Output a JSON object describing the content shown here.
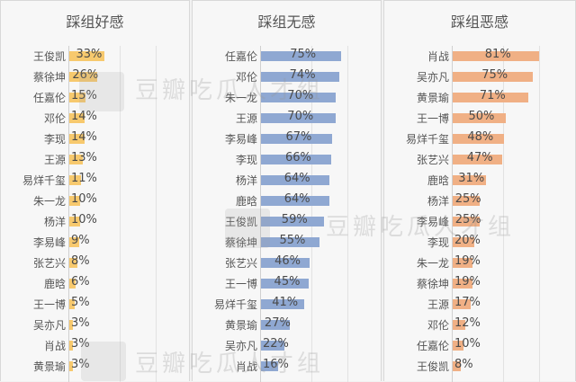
{
  "watermark": {
    "text": "豆瓣吃瓜人才组"
  },
  "colors": {
    "favorable": "#f7c96e",
    "neutral": "#8fa8d2",
    "unfavorable": "#f0b085",
    "background": "#f7f7f7"
  },
  "chart_data": [
    {
      "type": "bar",
      "orientation": "horizontal",
      "title": "踩组好感",
      "color": "#f7c96e",
      "categories": [
        "王俊凯",
        "蔡徐坤",
        "任嘉伦",
        "邓伦",
        "李现",
        "王源",
        "易烊千玺",
        "朱一龙",
        "杨洋",
        "李易峰",
        "张艺兴",
        "鹿晗",
        "王一博",
        "吴亦凡",
        "肖战",
        "黄景瑜"
      ],
      "values": [
        33,
        26,
        15,
        14,
        14,
        13,
        11,
        10,
        10,
        9,
        8,
        6,
        5,
        3,
        3,
        3
      ],
      "labels": [
        "33%",
        "26%",
        "15%",
        "14%",
        "14%",
        "13%",
        "11%",
        "10%",
        "10%",
        "9%",
        "8%",
        "6%",
        "5%",
        "3%",
        "3%",
        "3%"
      ],
      "unit": "%",
      "xlabel": "",
      "ylabel": "",
      "grid": true
    },
    {
      "type": "bar",
      "orientation": "horizontal",
      "title": "踩组无感",
      "color": "#8fa8d2",
      "categories": [
        "任嘉伦",
        "邓伦",
        "朱一龙",
        "王源",
        "李易峰",
        "李现",
        "杨洋",
        "鹿晗",
        "王俊凯",
        "蔡徐坤",
        "张艺兴",
        "王一博",
        "易烊千玺",
        "黄景瑜",
        "吴亦凡",
        "肖战"
      ],
      "values": [
        75,
        74,
        70,
        70,
        67,
        66,
        64,
        64,
        59,
        55,
        46,
        45,
        41,
        27,
        22,
        16
      ],
      "labels": [
        "75%",
        "74%",
        "70%",
        "70%",
        "67%",
        "66%",
        "64%",
        "64%",
        "59%",
        "55%",
        "46%",
        "45%",
        "41%",
        "27%",
        "22%",
        "16%"
      ],
      "unit": "%",
      "xlabel": "",
      "ylabel": "",
      "grid": true
    },
    {
      "type": "bar",
      "orientation": "horizontal",
      "title": "踩组恶感",
      "color": "#f0b085",
      "categories": [
        "肖战",
        "吴亦凡",
        "黄景瑜",
        "王一博",
        "易烊千玺",
        "张艺兴",
        "鹿晗",
        "杨洋",
        "李易峰",
        "李现",
        "朱一龙",
        "蔡徐坤",
        "王源",
        "邓伦",
        "任嘉伦",
        "王俊凯"
      ],
      "values": [
        81,
        75,
        71,
        50,
        48,
        47,
        31,
        25,
        25,
        20,
        19,
        19,
        17,
        12,
        10,
        8
      ],
      "labels": [
        "81%",
        "75%",
        "71%",
        "50%",
        "48%",
        "47%",
        "31%",
        "25%",
        "25%",
        "20%",
        "19%",
        "19%",
        "17%",
        "12%",
        "10%",
        "8%"
      ],
      "unit": "%",
      "xlabel": "",
      "ylabel": "",
      "grid": true
    }
  ]
}
